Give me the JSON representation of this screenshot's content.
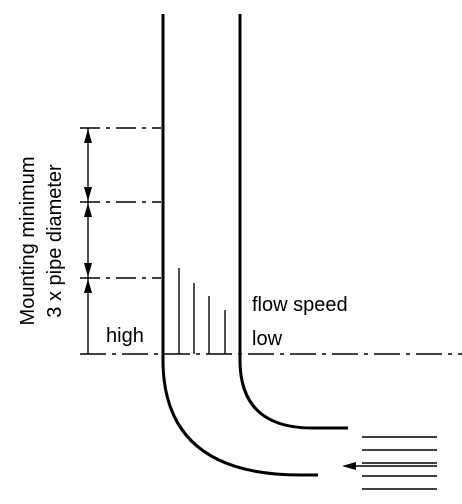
{
  "labels": {
    "rotated_line1": "Mounting minimum",
    "rotated_line2": "3 x pipe diameter",
    "high": "high",
    "flow_speed": "flow speed",
    "low": "low"
  },
  "colors": {
    "stroke": "#000000",
    "background": "#ffffff"
  }
}
